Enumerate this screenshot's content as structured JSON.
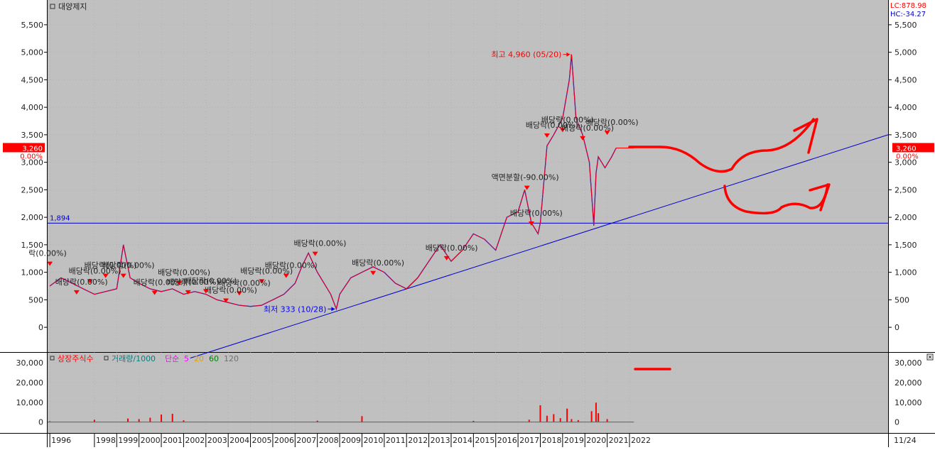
{
  "window": {
    "stock_name": "대양제지",
    "lc_label": "LC:878.98",
    "hc_label": "HC:-34.27",
    "date_label": "11/24"
  },
  "legend_volume": {
    "listed_shares": "상장주식수",
    "volume": "거래량/1000",
    "simple": "단순",
    "ma5": "5",
    "ma20": "20",
    "ma60": "60",
    "ma120": "120"
  },
  "colors": {
    "background": "#c0c0c0",
    "up": "#ff0000",
    "down": "#0000ff",
    "trendline": "#0000cc",
    "annotation_red": "#ff0000",
    "grid": "#a8a8a8"
  },
  "chart_data": [
    {
      "type": "line",
      "title": "대양제지",
      "y_ticks": [
        "5,500",
        "5,000",
        "4,500",
        "4,000",
        "3,500",
        "3,000",
        "2,500",
        "2,000",
        "1,500",
        "1,000",
        "500",
        "0"
      ],
      "ylim": [
        -450,
        5950
      ],
      "x_ticks": [
        "1996",
        "1998",
        "1999",
        "2000",
        "2001",
        "2002",
        "2003",
        "2004",
        "2005",
        "2006",
        "2007",
        "2008",
        "2009",
        "2010",
        "2011",
        "2012",
        "2013",
        "2014",
        "2015",
        "2016",
        "2017",
        "2018",
        "2019",
        "2020",
        "2021",
        "2022"
      ],
      "xlim": [
        1995.9,
        2033.6
      ],
      "series": [
        {
          "x": [
            1996.0,
            1996.5,
            1997.0,
            1997.5,
            1998.0,
            1998.5,
            1999.0,
            1999.3,
            1999.6,
            2000.0,
            2000.5,
            2001.0,
            2001.5,
            2002.0,
            2002.5,
            2003.0,
            2003.5,
            2004.0,
            2004.5,
            2005.0,
            2005.5,
            2006.0,
            2006.5,
            2007.0,
            2007.3,
            2007.6,
            2008.0,
            2008.3,
            2008.6,
            2008.85,
            2009.0,
            2009.5,
            2010.0,
            2010.5,
            2011.0,
            2011.5,
            2012.0,
            2012.5,
            2013.0,
            2013.5,
            2014.0,
            2014.5,
            2015.0,
            2015.5,
            2016.0,
            2016.5,
            2017.0,
            2017.3,
            2017.6,
            2017.9,
            2018.0,
            2018.3,
            2018.6,
            2019.0,
            2019.3,
            2019.4,
            2019.6,
            2019.9,
            2020.2,
            2020.4,
            2020.5,
            2020.6,
            2020.9,
            2021.2,
            2021.4
          ],
          "y": [
            750,
            900,
            800,
            700,
            600,
            650,
            700,
            1500,
            900,
            800,
            700,
            650,
            700,
            600,
            650,
            600,
            500,
            450,
            400,
            380,
            400,
            500,
            600,
            800,
            1100,
            1350,
            1000,
            800,
            600,
            333,
            600,
            900,
            1000,
            1100,
            1000,
            800,
            700,
            900,
            1200,
            1500,
            1200,
            1400,
            1700,
            1600,
            1400,
            2000,
            2100,
            2500,
            1900,
            1700,
            1900,
            3300,
            3500,
            3800,
            4500,
            4960,
            3800,
            3500,
            3000,
            1850,
            2800,
            3100,
            2900,
            3100,
            3260
          ]
        }
      ],
      "annotations": [
        {
          "text": "최고 4,960 (05/20)",
          "x": 2019.4,
          "y": 4960
        },
        {
          "text": "최저 333 (10/28)",
          "x": 2008.85,
          "y": 333
        },
        {
          "text": "1,894",
          "y": 1894
        },
        {
          "text": "액면분할(-90.00%)",
          "x": 2017.4,
          "y": 2600
        },
        {
          "text": "배당락(0.00%)",
          "x": 2017.6,
          "y": 1950
        },
        {
          "text": "배당락(0.00%)",
          "x": 2018.3,
          "y": 3550
        },
        {
          "text": "배당락(0.00%)",
          "x": 2019.0,
          "y": 3650
        },
        {
          "text": "배당락(0.00%)",
          "x": 2019.9,
          "y": 3500
        },
        {
          "text": "배당락(0.00%)",
          "x": 2021.0,
          "y": 3600
        },
        {
          "text": "배당락(0.00%)",
          "x": 2013.8,
          "y": 1320
        },
        {
          "text": "배당락(0.00%)",
          "x": 2010.5,
          "y": 1050
        },
        {
          "text": "배당락(0.00%)",
          "x": 2007.9,
          "y": 1400
        },
        {
          "text": "배당락(0.00%)",
          "x": 2006.6,
          "y": 1000
        },
        {
          "text": "배당락(0.00%)",
          "x": 2005.5,
          "y": 900
        },
        {
          "text": "배당락(0.00%)",
          "x": 2004.5,
          "y": 680
        },
        {
          "text": "배당락(0.00%)",
          "x": 2003.9,
          "y": 550
        },
        {
          "text": "배당락(0.00%)",
          "x": 2003.0,
          "y": 720
        },
        {
          "text": "배당락(0.00%)",
          "x": 2002.2,
          "y": 700
        },
        {
          "text": "배당락(0.00%)",
          "x": 2001.8,
          "y": 870
        },
        {
          "text": "배당락(0.00%)",
          "x": 2000.7,
          "y": 690
        },
        {
          "text": "배당락(0.00%)",
          "x": 1999.3,
          "y": 1000
        },
        {
          "text": "배당락(0.00%)",
          "x": 1998.5,
          "y": 1000
        },
        {
          "text": "배당락(0.00%)",
          "x": 1997.8,
          "y": 900
        },
        {
          "text": "배당락(0.00%)",
          "x": 1997.2,
          "y": 700
        },
        {
          "text": "락(0.00%)",
          "x": 1996.0,
          "y": 1220
        }
      ],
      "price_tag": {
        "value": "3,260",
        "change": "0.00%"
      }
    },
    {
      "type": "bar",
      "title": "거래량/1000",
      "y_ticks": [
        "30,000",
        "20,000",
        "10,000",
        "0"
      ],
      "ylim": [
        -5500,
        35000
      ],
      "series": [
        {
          "x": [
            1996.0,
            1998.0,
            1999.5,
            2000.0,
            2000.5,
            2001.0,
            2001.5,
            2002.0,
            2008.0,
            2010.0,
            2015.0,
            2017.5,
            2018.0,
            2018.3,
            2018.6,
            2018.9,
            2019.2,
            2019.4,
            2019.7,
            2020.3,
            2020.5,
            2020.6,
            2021.0
          ],
          "values": [
            400,
            1200,
            1800,
            1500,
            2200,
            3800,
            4200,
            900,
            700,
            3000,
            600,
            1200,
            8500,
            3200,
            4000,
            2000,
            6800,
            1500,
            1000,
            5500,
            9800,
            4500,
            1500
          ]
        }
      ]
    }
  ]
}
